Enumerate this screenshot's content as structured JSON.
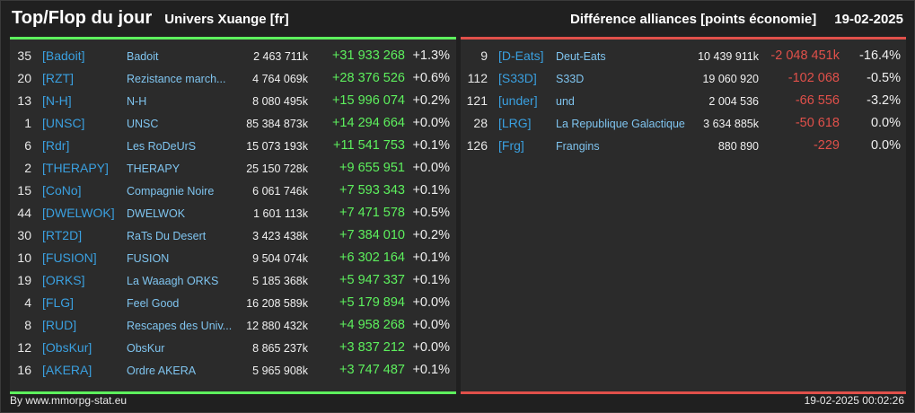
{
  "header": {
    "title": "Top/Flop du jour",
    "universe": "Univers Xuange [fr]",
    "subtitle": "Différence alliances [points économie]",
    "date": "19-02-2025"
  },
  "top": [
    {
      "rank": "35",
      "tag": "[Badoit]",
      "name": "Badoit",
      "points": "2 463 711k",
      "diff": "+31 933 268",
      "pct": "+1.3%"
    },
    {
      "rank": "20",
      "tag": "[RZT]",
      "name": "Rezistance march...",
      "points": "4 764 069k",
      "diff": "+28 376 526",
      "pct": "+0.6%"
    },
    {
      "rank": "13",
      "tag": "[N-H]",
      "name": "N-H",
      "points": "8 080 495k",
      "diff": "+15 996 074",
      "pct": "+0.2%"
    },
    {
      "rank": "1",
      "tag": "[UNSC]",
      "name": "UNSC",
      "points": "85 384 873k",
      "diff": "+14 294 664",
      "pct": "+0.0%"
    },
    {
      "rank": "6",
      "tag": "[Rdr]",
      "name": "Les RoDeUrS",
      "points": "15 073 193k",
      "diff": "+11 541 753",
      "pct": "+0.1%"
    },
    {
      "rank": "2",
      "tag": "[THERAPY]",
      "name": "THERAPY",
      "points": "25 150 728k",
      "diff": "+9 655 951",
      "pct": "+0.0%"
    },
    {
      "rank": "15",
      "tag": "[CoNo]",
      "name": "Compagnie Noire",
      "points": "6 061 746k",
      "diff": "+7 593 343",
      "pct": "+0.1%"
    },
    {
      "rank": "44",
      "tag": "[DWELWOK]",
      "name": "DWELWOK",
      "points": "1 601 113k",
      "diff": "+7 471 578",
      "pct": "+0.5%"
    },
    {
      "rank": "30",
      "tag": "[RT2D]",
      "name": "RaTs Du Desert",
      "points": "3 423 438k",
      "diff": "+7 384 010",
      "pct": "+0.2%"
    },
    {
      "rank": "10",
      "tag": "[FUSION]",
      "name": "FUSION",
      "points": "9 504 074k",
      "diff": "+6 302 164",
      "pct": "+0.1%"
    },
    {
      "rank": "19",
      "tag": "[ORKS]",
      "name": "La Waaagh ORKS",
      "points": "5 185 368k",
      "diff": "+5 947 337",
      "pct": "+0.1%"
    },
    {
      "rank": "4",
      "tag": "[FLG]",
      "name": "Feel Good",
      "points": "16 208 589k",
      "diff": "+5 179 894",
      "pct": "+0.0%"
    },
    {
      "rank": "8",
      "tag": "[RUD]",
      "name": "Rescapes des Univ...",
      "points": "12 880 432k",
      "diff": "+4 958 268",
      "pct": "+0.0%"
    },
    {
      "rank": "12",
      "tag": "[ObsKur]",
      "name": "ObsKur",
      "points": "8 865 237k",
      "diff": "+3 837 212",
      "pct": "+0.0%"
    },
    {
      "rank": "16",
      "tag": "[AKERA]",
      "name": "Ordre AKERA",
      "points": "5 965 908k",
      "diff": "+3 747 487",
      "pct": "+0.1%"
    }
  ],
  "flop": [
    {
      "rank": "9",
      "tag": "[D-Eats]",
      "name": "Deut-Eats",
      "points": "10 439 911k",
      "diff": "-2 048 451k",
      "pct": "-16.4%"
    },
    {
      "rank": "112",
      "tag": "[S33D]",
      "name": "S33D",
      "points": "19 060 920",
      "diff": "-102 068",
      "pct": "-0.5%"
    },
    {
      "rank": "121",
      "tag": "[under]",
      "name": "und",
      "points": "2 004 536",
      "diff": "-66 556",
      "pct": "-3.2%"
    },
    {
      "rank": "28",
      "tag": "[LRG]",
      "name": "La Republique Galactique",
      "points": "3 634 885k",
      "diff": "-50 618",
      "pct": "0.0%"
    },
    {
      "rank": "126",
      "tag": "[Frg]",
      "name": "Frangins",
      "points": "880 890",
      "diff": "-229",
      "pct": "0.0%"
    }
  ],
  "footer": {
    "credit": "By www.mmorpg-stat.eu",
    "timestamp": "19-02-2025 00:02:26"
  },
  "colors": {
    "positive": "#5df05d",
    "negative": "#e0504a",
    "tag": "#3aa0e0"
  }
}
